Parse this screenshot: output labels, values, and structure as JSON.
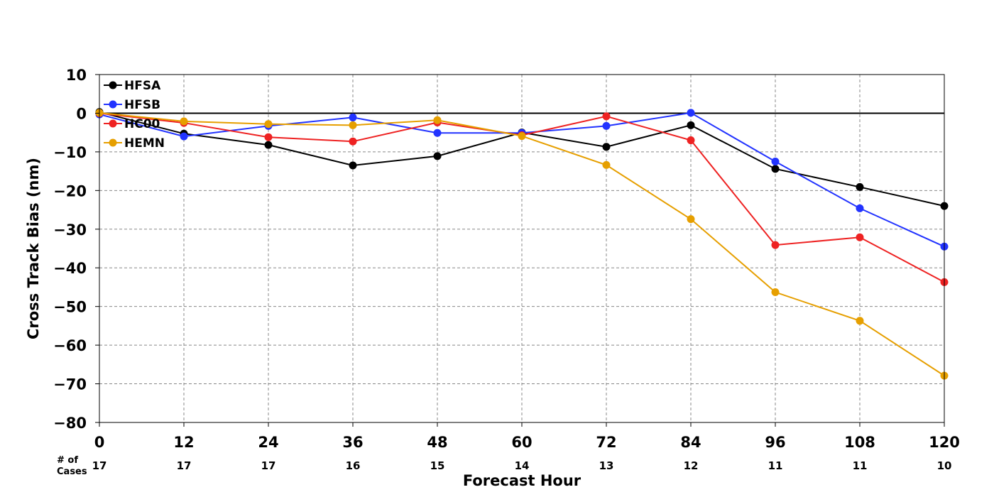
{
  "chart_data": {
    "type": "line",
    "title": "",
    "xlabel": "Forecast Hour",
    "ylabel": "Cross Track Bias (nm)",
    "x": [
      0,
      12,
      24,
      36,
      48,
      60,
      72,
      84,
      96,
      108,
      120
    ],
    "xlim": [
      0,
      120
    ],
    "ylim": [
      -80,
      10
    ],
    "yticks": [
      10,
      0,
      -10,
      -20,
      -30,
      -40,
      -50,
      -60,
      -70,
      -80
    ],
    "ytick_labels": [
      "10",
      "0",
      "−10",
      "−20",
      "−30",
      "−40",
      "−50",
      "−60",
      "−70",
      "−80"
    ],
    "xtick_labels": [
      "0",
      "12",
      "24",
      "36",
      "48",
      "60",
      "72",
      "84",
      "96",
      "108",
      "120"
    ],
    "grid": true,
    "zero_line": true,
    "legend_position": "top-left",
    "cases_label_line1": "# of",
    "cases_label_line2": "Cases",
    "cases": [
      "17",
      "17",
      "17",
      "16",
      "15",
      "14",
      "13",
      "12",
      "11",
      "11",
      "10"
    ],
    "series": [
      {
        "name": "HFSA",
        "color": "#000000",
        "values": [
          0.3,
          -5.3,
          -8.2,
          -13.5,
          -11.1,
          -5.0,
          -8.7,
          -3.1,
          -14.4,
          -19.1,
          -24.0
        ]
      },
      {
        "name": "HFSB",
        "color": "#2233ff",
        "values": [
          -0.3,
          -6.0,
          -3.3,
          -1.1,
          -5.1,
          -5.1,
          -3.3,
          0.1,
          -12.5,
          -24.6,
          -34.5
        ]
      },
      {
        "name": "HC00",
        "color": "#ee2222",
        "values": [
          0.0,
          -2.5,
          -6.2,
          -7.3,
          -2.4,
          -5.7,
          -0.8,
          -7.0,
          -34.1,
          -32.1,
          -43.7
        ]
      },
      {
        "name": "HEMN",
        "color": "#e69f00",
        "values": [
          0.1,
          -2.1,
          -2.8,
          -3.1,
          -1.8,
          -5.9,
          -13.4,
          -27.4,
          -46.3,
          -53.7,
          -67.9
        ]
      }
    ]
  }
}
